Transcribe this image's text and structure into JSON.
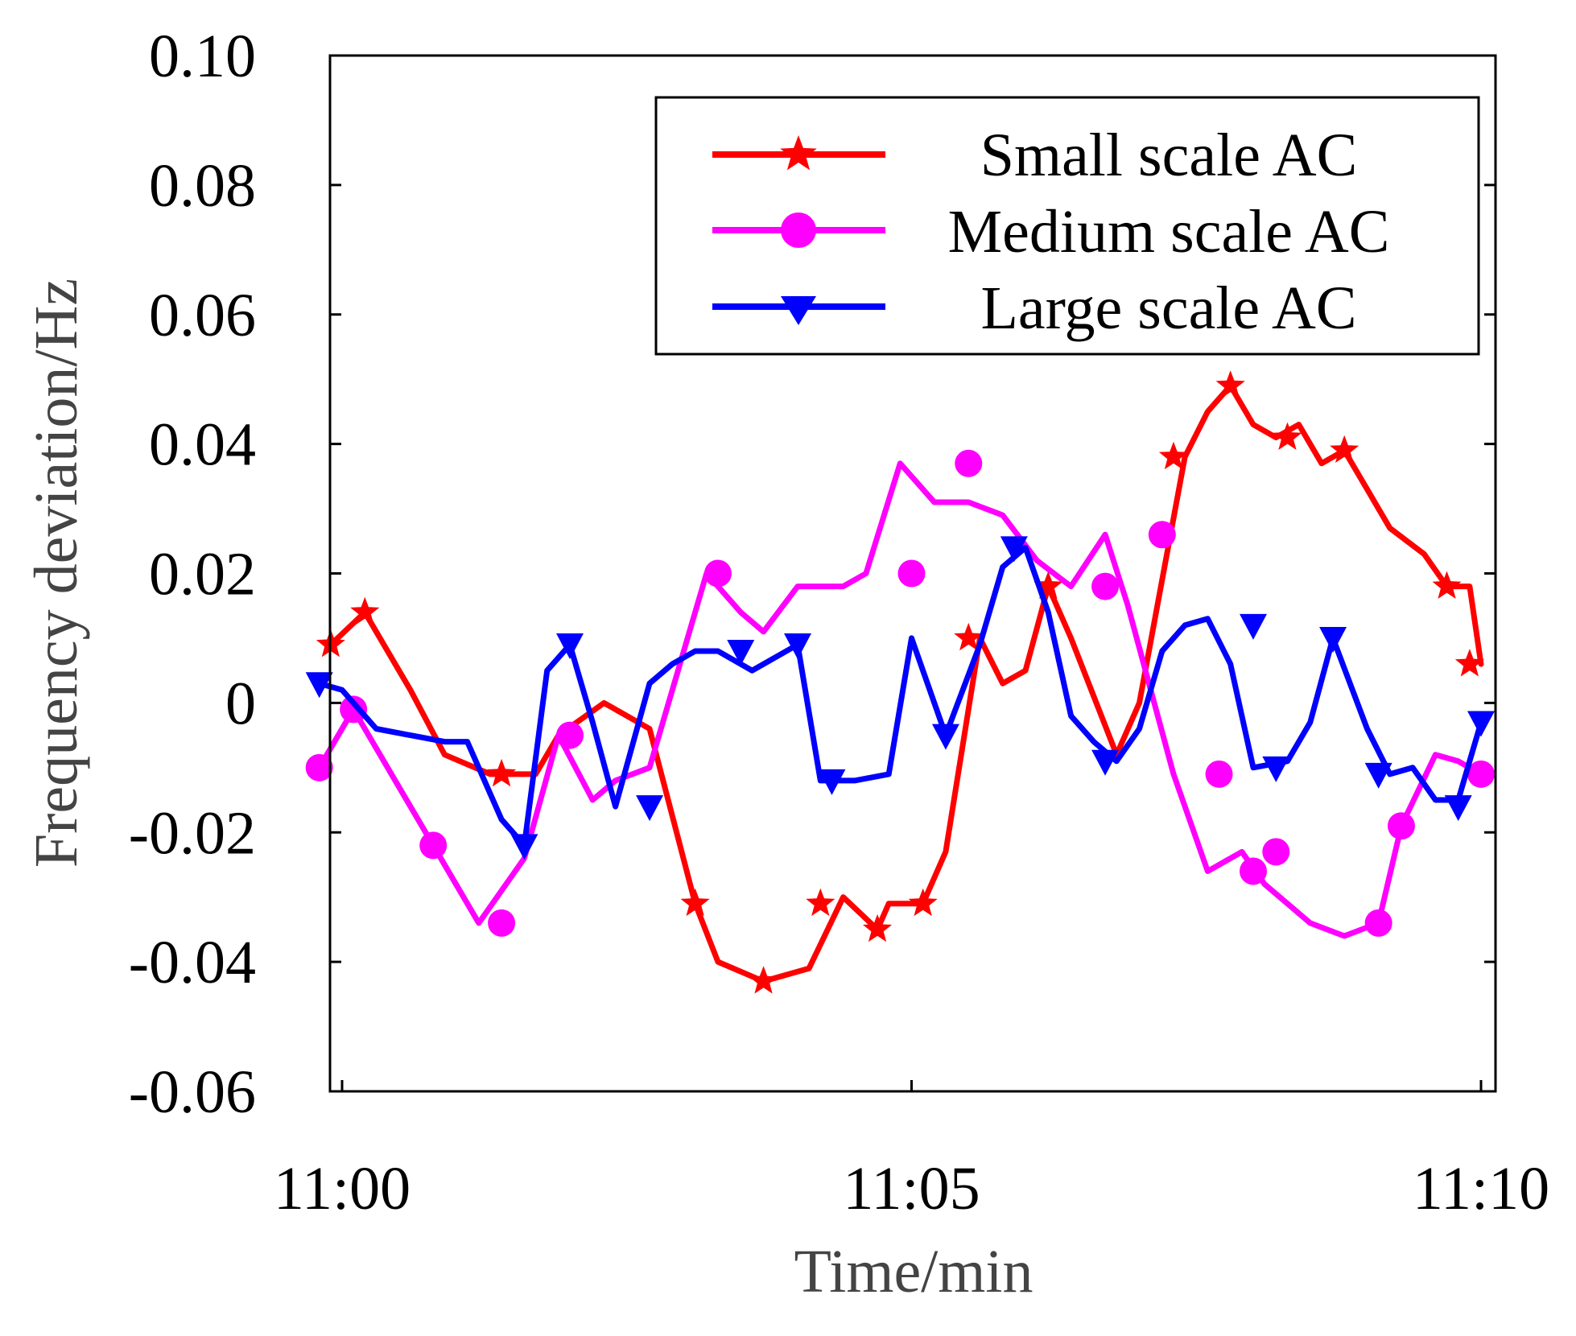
{
  "chart_data": {
    "type": "line",
    "title": "",
    "xlabel": "Time/min",
    "ylabel": "Frequency deviation/Hz",
    "xlim": [
      -0.2,
      10.2
    ],
    "ylim": [
      -0.06,
      0.1
    ],
    "x_ticks": [
      0,
      5,
      10
    ],
    "x_tick_labels": [
      "11:00",
      "11:05",
      "11:10"
    ],
    "y_ticks": [
      -0.06,
      -0.04,
      -0.02,
      0,
      0.02,
      0.04,
      0.06,
      0.08,
      0.1
    ],
    "y_tick_labels": [
      "-0.06",
      "-0.04",
      "-0.02",
      "0",
      "0.02",
      "0.04",
      "0.06",
      "0.08",
      "0.10"
    ],
    "legend_position": "top-right",
    "series": [
      {
        "name": "Small scale AC",
        "color": "#ff0000",
        "marker": "star",
        "x": [
          -0.1,
          0.2,
          0.6,
          0.9,
          1.3,
          1.7,
          1.9,
          2.3,
          2.7,
          3.1,
          3.3,
          3.7,
          4.1,
          4.4,
          4.7,
          4.8,
          5.1,
          5.3,
          5.6,
          5.8,
          6.0,
          6.2,
          6.4,
          6.6,
          6.8,
          7.0,
          7.4,
          7.6,
          7.8,
          8.0,
          8.2,
          8.4,
          8.6,
          8.8,
          9.0,
          9.2,
          9.5,
          9.7,
          9.9,
          10.0
        ],
        "y": [
          0.009,
          0.014,
          0.002,
          -0.008,
          -0.011,
          -0.011,
          -0.005,
          0.0,
          -0.004,
          -0.031,
          -0.04,
          -0.043,
          -0.041,
          -0.03,
          -0.035,
          -0.031,
          -0.031,
          -0.023,
          0.01,
          0.003,
          0.005,
          0.018,
          0.01,
          0.001,
          -0.008,
          0.0,
          0.038,
          0.045,
          0.049,
          0.043,
          0.041,
          0.043,
          0.037,
          0.039,
          0.033,
          0.027,
          0.023,
          0.018,
          0.018,
          0.006
        ],
        "marker_x": [
          -0.1,
          0.2,
          1.4,
          3.1,
          3.7,
          4.2,
          4.7,
          5.1,
          5.5,
          6.2,
          7.3,
          7.8,
          8.3,
          8.8,
          9.7,
          9.9
        ],
        "marker_y": [
          0.009,
          0.014,
          -0.011,
          -0.031,
          -0.043,
          -0.031,
          -0.035,
          -0.031,
          0.01,
          0.018,
          0.038,
          0.049,
          0.041,
          0.039,
          0.018,
          0.006
        ]
      },
      {
        "name": "Medium scale AC",
        "color": "#ff00ff",
        "marker": "circle",
        "x": [
          -0.2,
          0.1,
          0.8,
          1.2,
          1.6,
          1.9,
          2.2,
          2.4,
          2.7,
          3.2,
          3.5,
          3.7,
          4.0,
          4.4,
          4.6,
          4.9,
          5.2,
          5.5,
          5.8,
          6.1,
          6.4,
          6.7,
          6.9,
          7.3,
          7.6,
          7.9,
          8.1,
          8.5,
          8.8,
          9.1,
          9.3,
          9.6,
          9.8,
          10.0
        ],
        "y": [
          -0.01,
          -0.001,
          -0.022,
          -0.034,
          -0.024,
          -0.005,
          -0.015,
          -0.012,
          -0.01,
          0.02,
          0.014,
          0.011,
          0.018,
          0.018,
          0.02,
          0.037,
          0.031,
          0.031,
          0.029,
          0.022,
          0.018,
          0.026,
          0.015,
          -0.011,
          -0.026,
          -0.023,
          -0.028,
          -0.034,
          -0.036,
          -0.034,
          -0.019,
          -0.008,
          -0.009,
          -0.011
        ],
        "marker_x": [
          -0.2,
          0.1,
          0.8,
          1.4,
          2.0,
          3.3,
          5.0,
          5.5,
          6.7,
          7.2,
          7.7,
          8.0,
          8.2,
          9.1,
          9.3,
          10.0
        ],
        "marker_y": [
          -0.01,
          -0.001,
          -0.022,
          -0.034,
          -0.005,
          0.02,
          0.02,
          0.037,
          0.018,
          0.026,
          -0.011,
          -0.026,
          -0.023,
          -0.034,
          -0.019,
          -0.011
        ]
      },
      {
        "name": "Large scale AC",
        "color": "#0000ff",
        "marker": "triangle-down",
        "x": [
          -0.2,
          0.0,
          0.3,
          0.9,
          1.1,
          1.4,
          1.6,
          1.8,
          2.0,
          2.2,
          2.4,
          2.7,
          2.9,
          3.1,
          3.3,
          3.6,
          4.0,
          4.2,
          4.5,
          4.8,
          5.0,
          5.3,
          5.6,
          5.8,
          6.0,
          6.2,
          6.4,
          6.6,
          6.8,
          7.0,
          7.2,
          7.4,
          7.6,
          7.8,
          8.0,
          8.3,
          8.5,
          8.7,
          9.0,
          9.2,
          9.4,
          9.6,
          9.8,
          10.0
        ],
        "y": [
          0.003,
          0.002,
          -0.004,
          -0.006,
          -0.006,
          -0.018,
          -0.022,
          0.005,
          0.009,
          -0.003,
          -0.016,
          0.003,
          0.006,
          0.008,
          0.008,
          0.005,
          0.009,
          -0.012,
          -0.012,
          -0.011,
          0.01,
          -0.005,
          0.009,
          0.021,
          0.024,
          0.014,
          -0.002,
          -0.006,
          -0.009,
          -0.004,
          0.008,
          0.012,
          0.013,
          0.006,
          -0.01,
          -0.009,
          -0.003,
          0.01,
          -0.004,
          -0.011,
          -0.01,
          -0.015,
          -0.015,
          -0.003
        ],
        "marker_x": [
          -0.2,
          1.6,
          2.0,
          2.7,
          3.5,
          4.0,
          4.3,
          5.3,
          5.9,
          6.7,
          8.0,
          8.2,
          8.7,
          9.1,
          9.8,
          10.0
        ],
        "marker_y": [
          0.003,
          -0.022,
          0.009,
          -0.016,
          0.008,
          0.009,
          -0.012,
          -0.005,
          0.024,
          -0.009,
          0.012,
          -0.01,
          0.01,
          -0.011,
          -0.016,
          -0.003
        ]
      }
    ]
  }
}
